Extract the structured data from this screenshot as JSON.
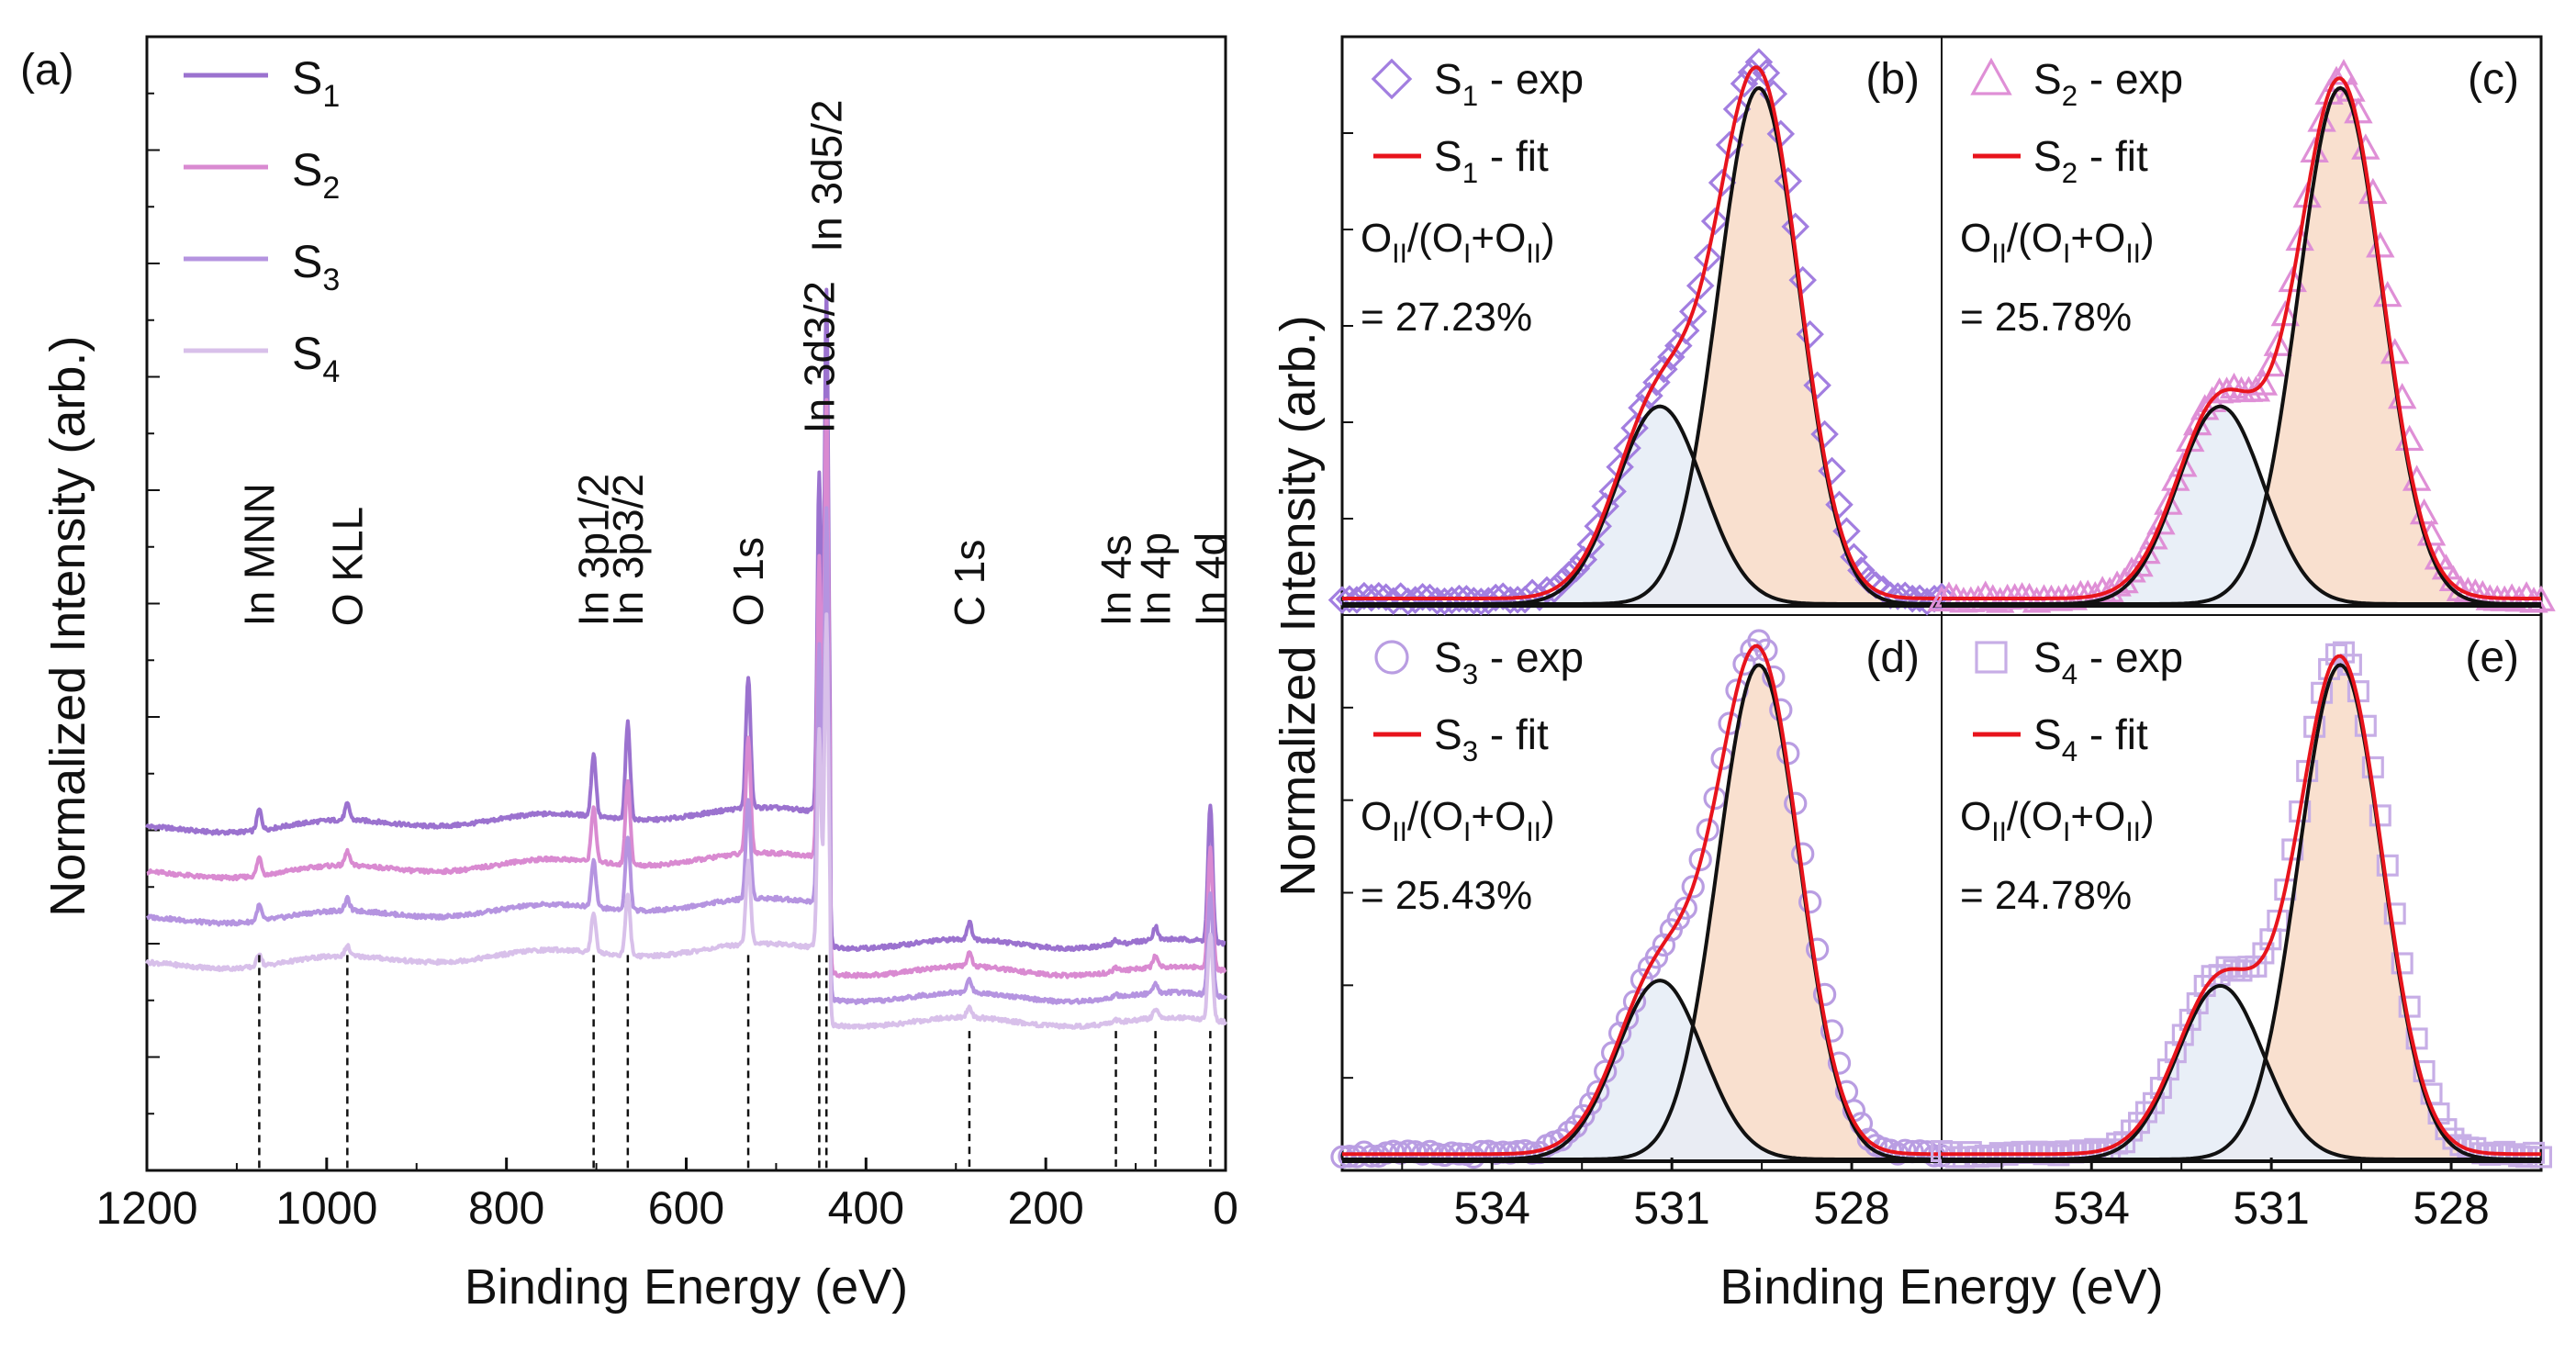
{
  "chart_data": [
    {
      "id": "a",
      "type": "line",
      "panel_label": "(a)",
      "xlabel": "Binding Energy (eV)",
      "ylabel": "Normalized Intensity (arb.)",
      "xlim": [
        1200,
        0
      ],
      "xticks": [
        "1200",
        "1000",
        "800",
        "600",
        "400",
        "200",
        "0"
      ],
      "ylim": [
        0,
        1
      ],
      "legend_position": "top-left",
      "series": [
        {
          "name": "S1",
          "legend_main": "S",
          "legend_sub": "1",
          "color": "#9b72cf",
          "baseline": 0.3,
          "step": 0.118
        },
        {
          "name": "S2",
          "legend_main": "S",
          "legend_sub": "2",
          "color": "#d98ad1",
          "baseline": 0.26,
          "step": 0.102
        },
        {
          "name": "S3",
          "legend_main": "S",
          "legend_sub": "3",
          "color": "#b594e0",
          "baseline": 0.22,
          "step": 0.085
        },
        {
          "name": "S4",
          "legend_main": "S",
          "legend_sub": "4",
          "color": "#d8c0ea",
          "baseline": 0.18,
          "step": 0.067
        }
      ],
      "peaks": [
        {
          "label": "In MNN",
          "energy": 1075,
          "height": 0.018,
          "label_position": "above"
        },
        {
          "label": "O KLL",
          "energy": 977,
          "height": 0.014,
          "label_position": "above"
        },
        {
          "label": "In 3p1/2",
          "energy": 703,
          "height": 0.055,
          "label_position": "above"
        },
        {
          "label": "In 3p3/2",
          "energy": 665,
          "height": 0.085,
          "label_position": "above"
        },
        {
          "label": "O 1s",
          "energy": 531,
          "height": 0.115,
          "label_position": "above"
        },
        {
          "label": "In 3d3/2",
          "energy": 452,
          "height": 0.3,
          "label_position": "above"
        },
        {
          "label": "In 3d5/2",
          "energy": 444,
          "height": 0.46,
          "label_position": "above"
        },
        {
          "label": "C 1s",
          "energy": 285,
          "height": 0.015,
          "label_position": "above"
        },
        {
          "label": "In 4s",
          "energy": 122,
          "height": 0.004,
          "label_position": "above"
        },
        {
          "label": "In 4p",
          "energy": 78,
          "height": 0.012,
          "label_position": "above"
        },
        {
          "label": "In 4d",
          "energy": 17,
          "height": 0.12,
          "label_position": "above"
        }
      ]
    },
    {
      "id": "b",
      "type": "line",
      "panel_label": "(b)",
      "xlim": [
        536.5,
        526.5
      ],
      "xticks": [
        "534",
        "531",
        "528"
      ],
      "exp_label": {
        "main": "S",
        "sub": "1",
        "rest": " - exp"
      },
      "fit_label": {
        "main": "S",
        "sub": "1",
        "rest": " - fit"
      },
      "marker": "diamond",
      "marker_color": "#a27ee0",
      "ratio_value": "= 27.23%",
      "components": [
        {
          "name": "O_II",
          "center": 531.2,
          "sigma": 0.72,
          "amplitude": 0.36
        },
        {
          "name": "O_I",
          "center": 529.55,
          "sigma": 0.68,
          "amplitude": 0.94
        }
      ]
    },
    {
      "id": "c",
      "type": "line",
      "panel_label": "(c)",
      "xlim": [
        536.5,
        526.5
      ],
      "xticks": [
        "534",
        "531",
        "528"
      ],
      "exp_label": {
        "main": "S",
        "sub": "2",
        "rest": " - exp"
      },
      "fit_label": {
        "main": "S",
        "sub": "2",
        "rest": " - fit"
      },
      "marker": "triangle",
      "marker_color": "#df8fd6",
      "ratio_value": "= 25.78%",
      "components": [
        {
          "name": "O_II",
          "center": 531.85,
          "sigma": 0.72,
          "amplitude": 0.36
        },
        {
          "name": "O_I",
          "center": 529.85,
          "sigma": 0.7,
          "amplitude": 0.94
        }
      ]
    },
    {
      "id": "d",
      "type": "line",
      "panel_label": "(d)",
      "xlim": [
        536.5,
        526.5
      ],
      "xticks": [
        "534",
        "531",
        "528"
      ],
      "exp_label": {
        "main": "S",
        "sub": "3",
        "rest": " - exp"
      },
      "fit_label": {
        "main": "S",
        "sub": "3",
        "rest": " - fit"
      },
      "marker": "circle",
      "marker_color": "#b99de2",
      "ratio_value": "= 25.43%",
      "components": [
        {
          "name": "O_II",
          "center": 531.2,
          "sigma": 0.72,
          "amplitude": 0.34
        },
        {
          "name": "O_I",
          "center": 529.55,
          "sigma": 0.68,
          "amplitude": 0.94
        }
      ]
    },
    {
      "id": "e",
      "type": "line",
      "panel_label": "(e)",
      "xlim": [
        536.5,
        526.5
      ],
      "xticks": [
        "534",
        "531",
        "528"
      ],
      "exp_label": {
        "main": "S",
        "sub": "4",
        "rest": " - exp"
      },
      "fit_label": {
        "main": "S",
        "sub": "4",
        "rest": " - fit"
      },
      "marker": "square",
      "marker_color": "#c7aee6",
      "ratio_value": "= 24.78%",
      "components": [
        {
          "name": "O_II",
          "center": 531.85,
          "sigma": 0.72,
          "amplitude": 0.33
        },
        {
          "name": "O_I",
          "center": 529.85,
          "sigma": 0.7,
          "amplitude": 0.94
        }
      ]
    }
  ],
  "shared": {
    "right_ylabel": "Normalized Intensity (arb.)",
    "right_xlabel": "Binding Energy (eV)",
    "ratio_formula": {
      "o": "O",
      "ii": "II",
      "slash": "/(",
      "i": "I",
      "plus": "+",
      "close": ")"
    },
    "fit_line_color": "#e8141c",
    "component_line_color": "#111111",
    "oi_fill_color": "#f9e0cf",
    "oii_fill_color": "#e7edf6"
  }
}
